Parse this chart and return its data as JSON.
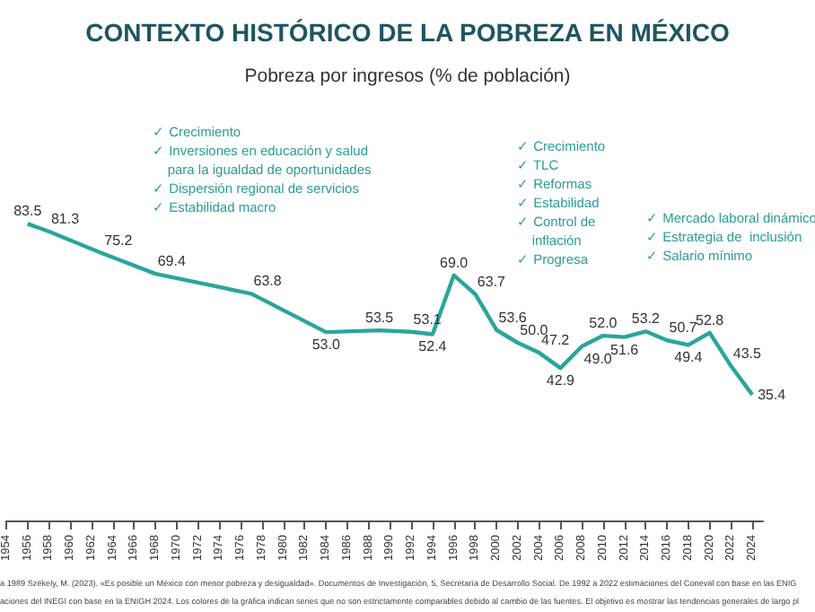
{
  "chart_data": {
    "type": "line",
    "title": "CONTEXTO HISTÓRICO DE LA POBREZA EN MÉXICO",
    "subtitle": "Pobreza por ingresos (% de población)",
    "x": [
      1956,
      1958,
      1963,
      1968,
      1977,
      1984,
      1989,
      1992,
      1994,
      1996,
      1998,
      2000,
      2002,
      2004,
      2006,
      2008,
      2010,
      2012,
      2014,
      2016,
      2018,
      2020,
      2022,
      2024
    ],
    "series": [
      {
        "color": "#2ba59b",
        "values": [
          83.5,
          81.3,
          75.2,
          69.4,
          63.8,
          53.0,
          53.5,
          53.1,
          52.4,
          69.0,
          63.7,
          53.6,
          50.0,
          47.2,
          42.9,
          49.0,
          52.0,
          51.6,
          53.2,
          50.7,
          49.4,
          52.8,
          43.5,
          35.4
        ],
        "value_labels": [
          "83.5",
          "81.3",
          "75.2",
          "69.4",
          "63.8",
          "53.0",
          "53.5",
          "53.1",
          "52.4",
          "69.0",
          "63.7",
          "53.6",
          "50.0",
          "47.2",
          "42.9",
          "49.0",
          "52.0",
          "51.6",
          "53.2",
          "50.7",
          "49.4",
          "52.8",
          "43.5",
          "35.4"
        ]
      }
    ],
    "xlim": [
      1954,
      2025
    ],
    "xticks": [
      1954,
      1956,
      1958,
      1960,
      1962,
      1964,
      1966,
      1968,
      1970,
      1972,
      1974,
      1976,
      1978,
      1980,
      1982,
      1984,
      1986,
      1988,
      1990,
      1992,
      1994,
      1996,
      1998,
      2000,
      2002,
      2004,
      2006,
      2008,
      2010,
      2012,
      2014,
      2016,
      2018,
      2020,
      2022,
      2024
    ],
    "tick_labels": "x",
    "grid": false,
    "marker": "none",
    "annotations": [
      "✓ Crecimiento\n✓ Inversiones en educación y salud\n    para la igualdad de oportunidades\n✓ Dispersión regional de servicios\n✓ Estabilidad macro",
      "✓ Crecimiento\n✓ TLC\n✓ Reformas\n✓ Estabilidad\n✓ Control de\n    inflación\n✓ Progresa",
      "✓ Mercado laboral dinámico\n✓ Estrategia de  inclusión\n✓ Salario mínimo",
      "a 1989 Székely, M. (2023). «Es posible un México con menor pobreza y desigualdad». Documentos de Investigación, 5, Secretaría de Desarrollo Social. De 1992 a 2022 estimaciones del Coneval con base en las ENIG",
      "aciones del INEGI con base en la ENIGH 2024. Los colores de la gráfica indican series que no son estrictamente comparables debido al cambio de las fuentes. El objetivo es mostrar las tendencias generales de largo pl"
    ]
  }
}
